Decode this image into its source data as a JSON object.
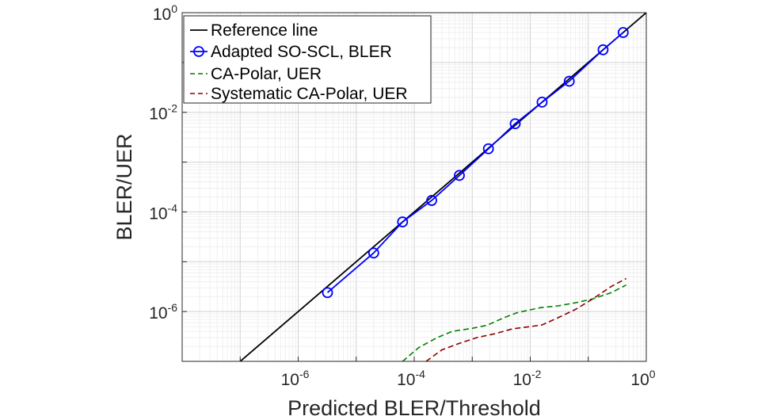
{
  "chart_data": {
    "type": "line",
    "xlabel": "Predicted BLER/Threshold",
    "ylabel": "BLER/UER",
    "xscale": "log",
    "yscale": "log",
    "xlim": [
      1e-08,
      1
    ],
    "ylim": [
      1e-07,
      1
    ],
    "grid": true,
    "legend_position": "top-left",
    "x_ticks": [
      {
        "base": "10",
        "exp": "-6",
        "value": 1e-06
      },
      {
        "base": "10",
        "exp": "-4",
        "value": 0.0001
      },
      {
        "base": "10",
        "exp": "-2",
        "value": 0.01
      },
      {
        "base": "10",
        "exp": "0",
        "value": 1
      }
    ],
    "y_ticks": [
      {
        "base": "10",
        "exp": "-6",
        "value": 1e-06
      },
      {
        "base": "10",
        "exp": "-4",
        "value": 0.0001
      },
      {
        "base": "10",
        "exp": "-2",
        "value": 0.01
      },
      {
        "base": "10",
        "exp": "0",
        "value": 1
      }
    ],
    "series": [
      {
        "name": "Reference line",
        "color": "#000000",
        "style": "solid",
        "marker": "none",
        "x": [
          1e-08,
          1
        ],
        "y": [
          1e-08,
          1
        ]
      },
      {
        "name": "Adapted SO-SCL, BLER",
        "color": "#0000ff",
        "style": "solid",
        "marker": "circle",
        "x": [
          3.2e-06,
          2e-05,
          6.3e-05,
          0.0002,
          0.0006,
          0.0019,
          0.0055,
          0.016,
          0.047,
          0.18,
          0.4
        ],
        "y": [
          2.4e-06,
          1.5e-05,
          6.3e-05,
          0.00017,
          0.00054,
          0.00185,
          0.0059,
          0.016,
          0.042,
          0.18,
          0.4
        ]
      },
      {
        "name": "CA-Polar, UER",
        "color": "#008000",
        "style": "dashed",
        "marker": "none",
        "x": [
          6.3e-05,
          0.00012,
          0.00025,
          0.00045,
          0.001,
          0.0018,
          0.0035,
          0.006,
          0.015,
          0.03,
          0.06,
          0.12,
          0.25,
          0.45
        ],
        "y": [
          1e-07,
          1.9e-07,
          3e-07,
          4e-07,
          4.6e-07,
          5.3e-07,
          7.5e-07,
          9.5e-07,
          1.2e-06,
          1.3e-06,
          1.5e-06,
          1.8e-06,
          2.4e-06,
          3.4e-06
        ]
      },
      {
        "name": "Systematic CA-Polar, UER",
        "color": "#8b0000",
        "style": "dashed",
        "marker": "none",
        "x": [
          0.00016,
          0.0003,
          0.0006,
          0.0012,
          0.0025,
          0.005,
          0.01,
          0.016,
          0.03,
          0.06,
          0.12,
          0.25,
          0.45
        ],
        "y": [
          1e-07,
          1.7e-07,
          2.3e-07,
          3e-07,
          3.6e-07,
          4.5e-07,
          5e-07,
          5.4e-07,
          7.5e-07,
          1.1e-06,
          1.8e-06,
          3.2e-06,
          4.6e-06
        ]
      }
    ]
  }
}
